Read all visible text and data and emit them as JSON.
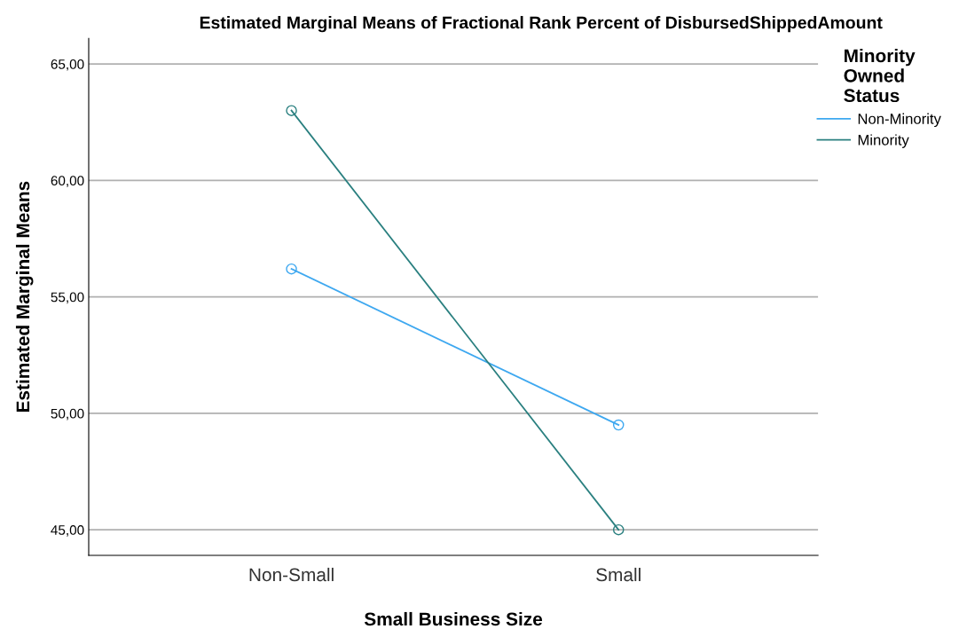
{
  "chart_data": {
    "type": "line",
    "title": "Estimated Marginal Means of Fractional Rank Percent of DisbursedShippedAmount",
    "xlabel": "Small Business Size",
    "ylabel": "Estimated Marginal Means",
    "legend_title": "Minority Owned Status",
    "categories": [
      "Non-Small",
      "Small"
    ],
    "series": [
      {
        "name": "Non-Minority",
        "color": "#3ea8f0",
        "values": [
          56.2,
          49.5
        ]
      },
      {
        "name": "Minority",
        "color": "#2b8080",
        "values": [
          63.0,
          45.0
        ]
      }
    ],
    "ylim": [
      43.9,
      66.1
    ],
    "yticks": [
      {
        "value": 45,
        "label": "45,00"
      },
      {
        "value": 50,
        "label": "50,00"
      },
      {
        "value": 55,
        "label": "55,00"
      },
      {
        "value": 60,
        "label": "60,00"
      },
      {
        "value": 65,
        "label": "65,00"
      }
    ],
    "grid": "y",
    "legend": "right",
    "marker": "circle",
    "line_style": "solid"
  }
}
